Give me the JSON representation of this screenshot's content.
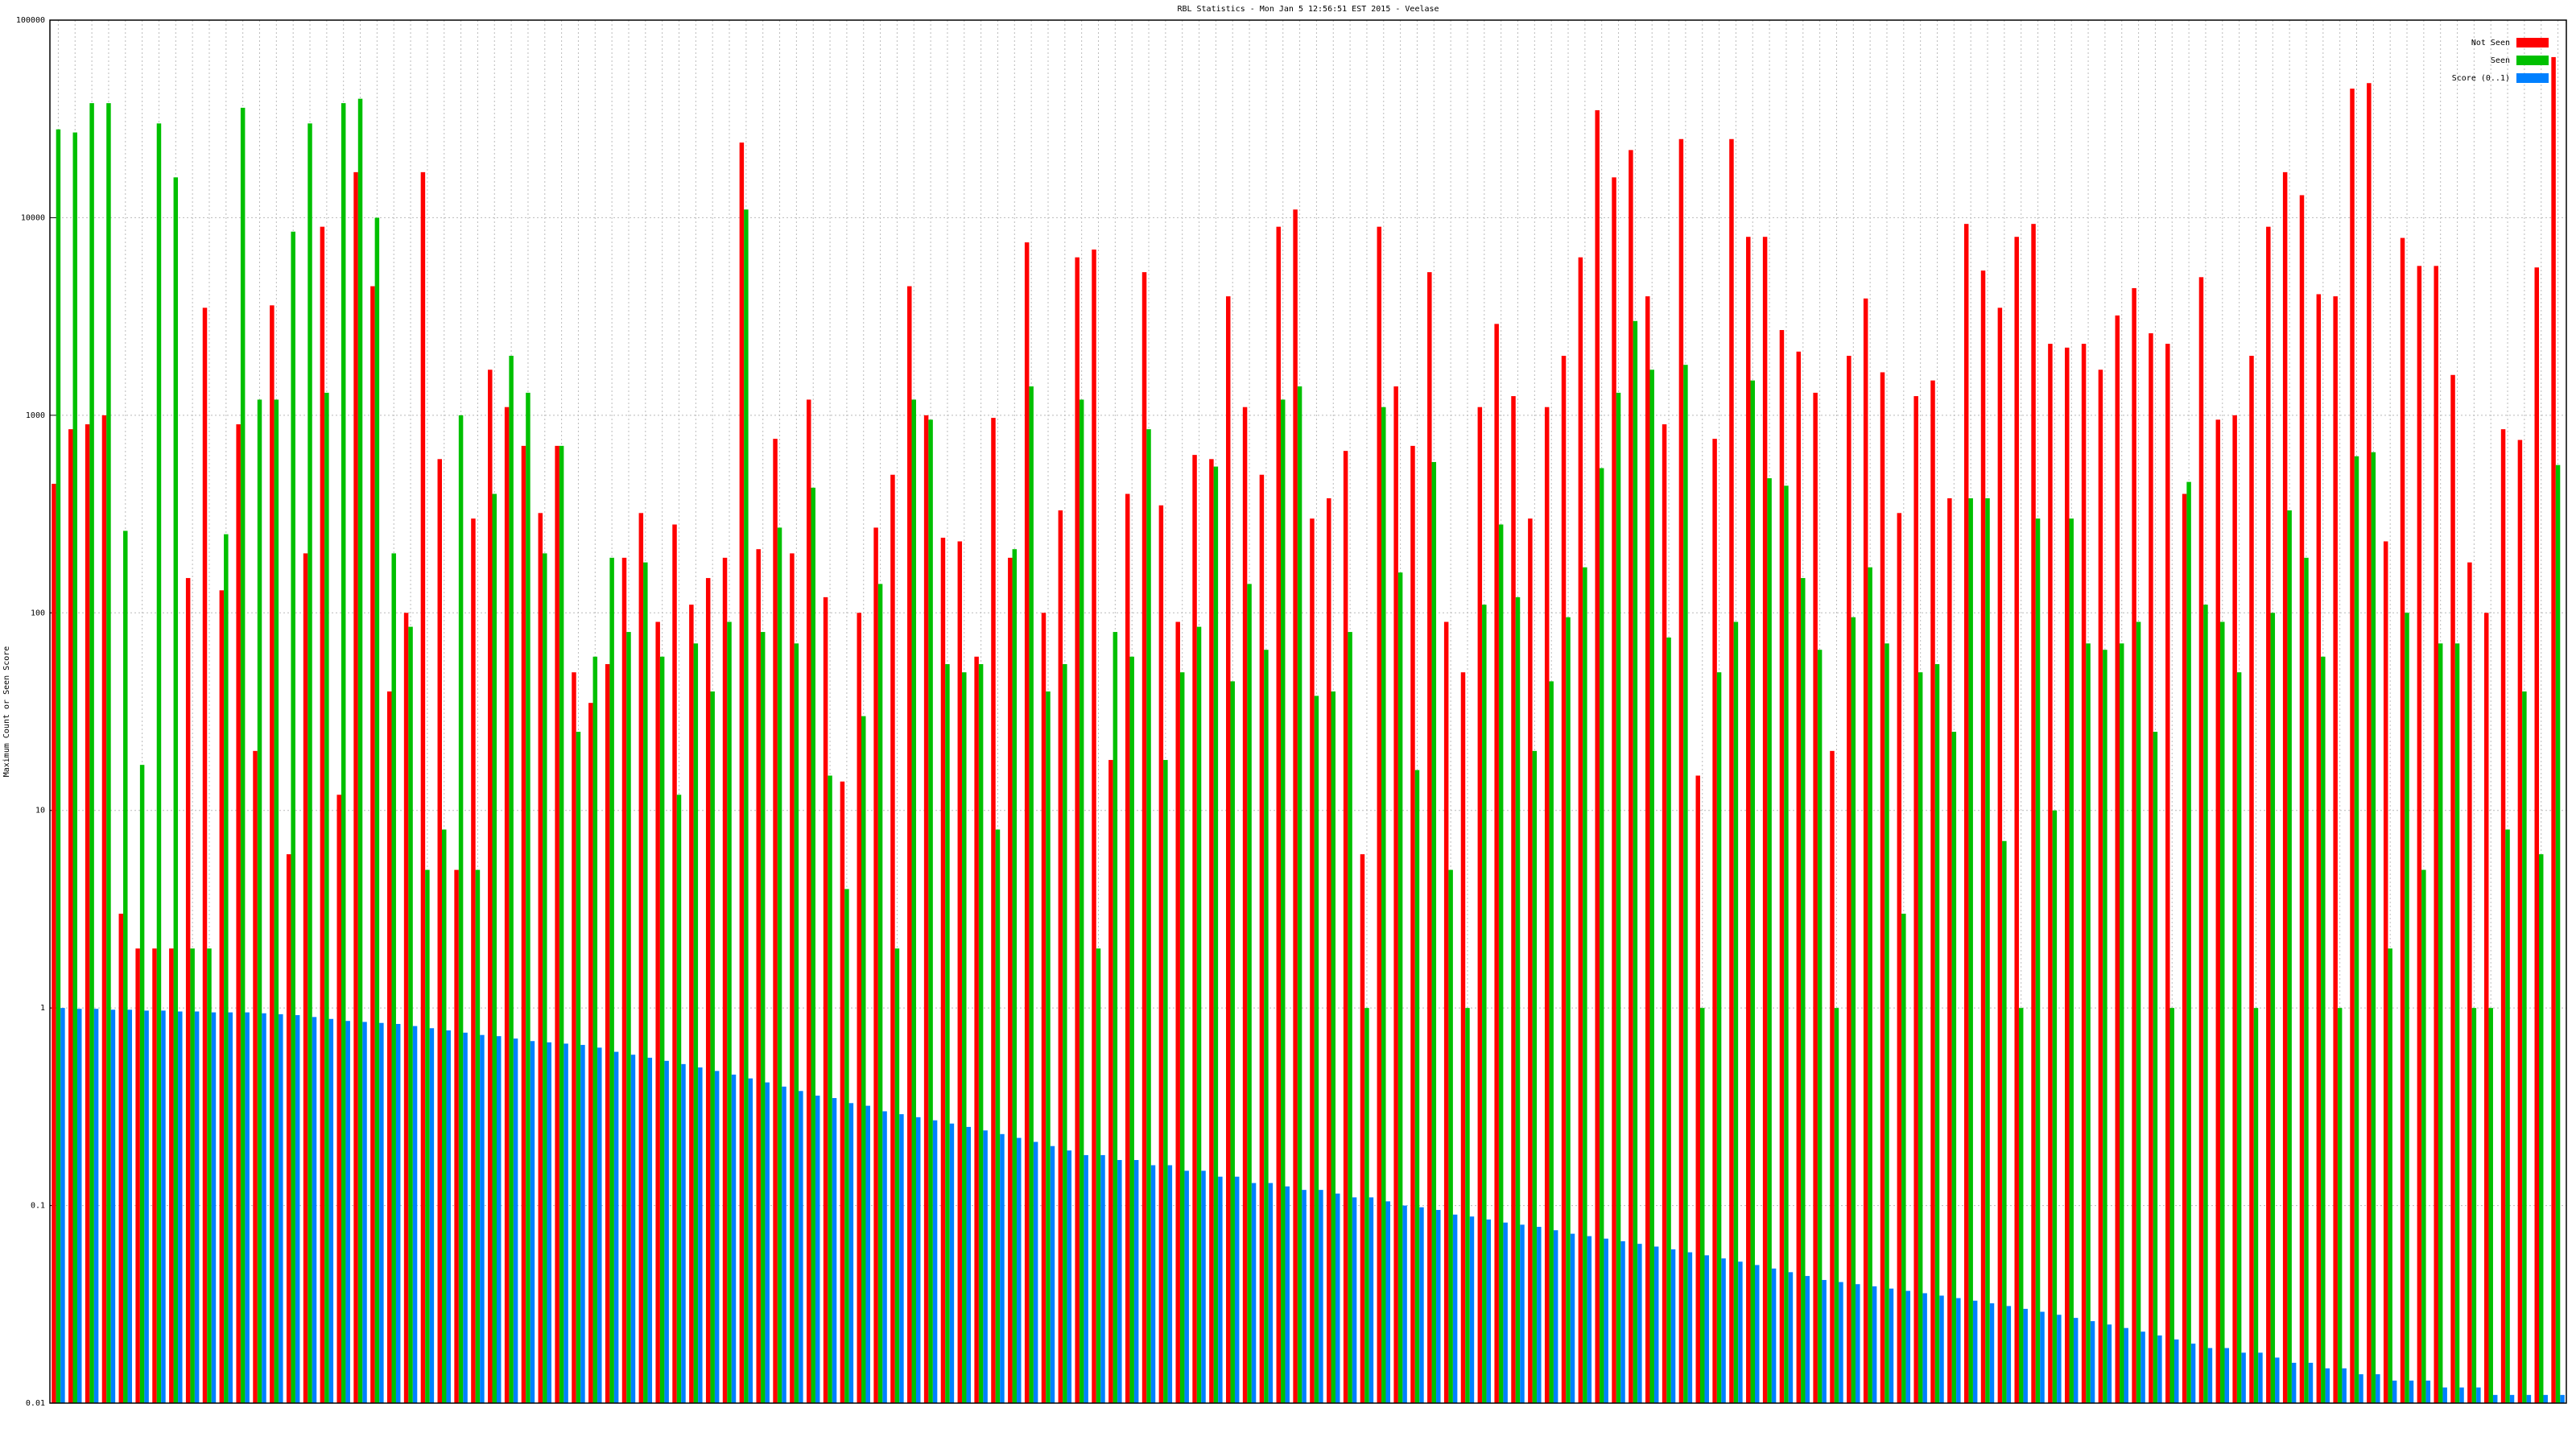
{
  "chart_data": {
    "type": "bar",
    "title": "RBL Statistics - Mon Jan  5 12:56:51 EST 2015 - Veelase",
    "y_label": "Maximum Count or Seen Score",
    "log_scale": true,
    "grid": true,
    "legend": "top-right",
    "ylim": [
      0.01,
      100000
    ],
    "yticks": [
      0.01,
      0.1,
      1,
      10,
      100,
      1000,
      10000,
      100000
    ],
    "categories": [
      null,
      null,
      null,
      null,
      null,
      null,
      null,
      null,
      null,
      null,
      null,
      null,
      null,
      null,
      null,
      null,
      null,
      null,
      null,
      null,
      null,
      null,
      null,
      null,
      null,
      null,
      null,
      null,
      null,
      null,
      null,
      null,
      null,
      null,
      null,
      null,
      null,
      null,
      null,
      null,
      null,
      null,
      null,
      null,
      null,
      null,
      null,
      null,
      null,
      null,
      null,
      null,
      null,
      null,
      null,
      null,
      null,
      null,
      null,
      null,
      null,
      null,
      null,
      null,
      null,
      null,
      null,
      null,
      null,
      null,
      null,
      null,
      null,
      null,
      null,
      null,
      null,
      null,
      null,
      null,
      null,
      null,
      null,
      null,
      null,
      null,
      null,
      null,
      null,
      null,
      null,
      null,
      null,
      null,
      null,
      null,
      null,
      null,
      null,
      null,
      null,
      null,
      null,
      null,
      null,
      null,
      null,
      null,
      null,
      null,
      null,
      null,
      null,
      null,
      null,
      null,
      null,
      null,
      null,
      null,
      null,
      null,
      null,
      null,
      null,
      null,
      null,
      null,
      null,
      null,
      null,
      null,
      null,
      null,
      null,
      null,
      null,
      null,
      null,
      null,
      null,
      null,
      null,
      null,
      null,
      null,
      null,
      null,
      null,
      null
    ],
    "series": [
      {
        "name": "Not Seen",
        "color": "#ff0000",
        "values": [
          450,
          850,
          900,
          1000,
          3,
          2,
          2,
          2,
          150,
          3500,
          130,
          900,
          20,
          3600,
          6,
          200,
          9000,
          12,
          17000,
          4500,
          40,
          100,
          17000,
          600,
          5,
          300,
          1700,
          1100,
          700,
          320,
          700,
          50,
          35,
          55,
          190,
          320,
          90,
          280,
          110,
          150,
          190,
          24000,
          210,
          760,
          200,
          1200,
          120,
          14,
          100,
          270,
          500,
          4500,
          1000,
          240,
          230,
          60,
          970,
          190,
          7500,
          100,
          330,
          6300,
          6900,
          18,
          400,
          5300,
          350,
          90,
          630,
          600,
          4000,
          1100,
          500,
          9000,
          11000,
          300,
          380,
          660,
          6,
          9000,
          1400,
          700,
          5300,
          90,
          50,
          1100,
          2900,
          1250,
          300,
          1100,
          2000,
          6300,
          35000,
          16000,
          22000,
          4000,
          900,
          25000,
          15,
          760,
          25000,
          8000,
          8000,
          2700,
          2100,
          1300,
          20,
          2000,
          3900,
          1650,
          320,
          1250,
          1500,
          380,
          9300,
          5400,
          3500,
          8000,
          9300,
          2300,
          2200,
          2300,
          1700,
          3200,
          4400,
          2600,
          2300,
          400,
          5000,
          950,
          1000,
          2000,
          9000,
          17000,
          13000,
          4100,
          4000,
          45000,
          48000,
          230,
          7900,
          5700,
          5700,
          1600,
          180,
          100,
          850,
          750,
          5600,
          65000
        ]
      },
      {
        "name": "Seen",
        "color": "#00c000",
        "values": [
          28000,
          27000,
          38000,
          38000,
          260,
          17,
          30000,
          16000,
          2,
          2,
          250,
          36000,
          1200,
          1200,
          8500,
          30000,
          1300,
          38000,
          40000,
          10000,
          200,
          85,
          5,
          8,
          1000,
          5,
          400,
          2000,
          1300,
          200,
          700,
          25,
          60,
          190,
          80,
          180,
          60,
          12,
          70,
          40,
          90,
          11000,
          80,
          270,
          70,
          430,
          15,
          4,
          30,
          140,
          2,
          1200,
          950,
          55,
          50,
          55,
          8,
          210,
          1400,
          40,
          55,
          1200,
          2,
          80,
          60,
          850,
          18,
          50,
          85,
          550,
          45,
          140,
          65,
          1200,
          1400,
          38,
          40,
          80,
          1,
          1100,
          160,
          16,
          580,
          5,
          1,
          110,
          280,
          120,
          20,
          45,
          95,
          170,
          540,
          1300,
          3000,
          1700,
          75,
          1800,
          1,
          50,
          90,
          1500,
          480,
          440,
          150,
          65,
          1,
          95,
          170,
          70,
          3,
          50,
          55,
          25,
          380,
          380,
          7,
          1,
          300,
          10,
          300,
          70,
          65,
          70,
          90,
          25,
          1,
          460,
          110,
          90,
          50,
          1,
          100,
          330,
          190,
          60,
          1,
          620,
          650,
          2,
          100,
          5,
          70,
          70,
          1,
          1,
          8,
          40,
          6,
          560
        ]
      },
      {
        "name": "Score (0..1)",
        "color": "#0080ff",
        "values": [
          1.0,
          0.99,
          0.99,
          0.98,
          0.98,
          0.97,
          0.97,
          0.96,
          0.96,
          0.95,
          0.95,
          0.95,
          0.94,
          0.93,
          0.92,
          0.9,
          0.88,
          0.86,
          0.85,
          0.84,
          0.83,
          0.81,
          0.79,
          0.77,
          0.75,
          0.73,
          0.72,
          0.7,
          0.68,
          0.67,
          0.66,
          0.65,
          0.63,
          0.6,
          0.58,
          0.56,
          0.54,
          0.52,
          0.5,
          0.48,
          0.46,
          0.44,
          0.42,
          0.4,
          0.38,
          0.36,
          0.35,
          0.33,
          0.32,
          0.3,
          0.29,
          0.28,
          0.27,
          0.26,
          0.25,
          0.24,
          0.23,
          0.22,
          0.21,
          0.2,
          0.19,
          0.18,
          0.18,
          0.17,
          0.17,
          0.16,
          0.16,
          0.15,
          0.15,
          0.14,
          0.14,
          0.13,
          0.13,
          0.125,
          0.12,
          0.12,
          0.115,
          0.11,
          0.11,
          0.105,
          0.1,
          0.098,
          0.095,
          0.09,
          0.088,
          0.085,
          0.082,
          0.08,
          0.078,
          0.075,
          0.072,
          0.07,
          0.068,
          0.066,
          0.064,
          0.062,
          0.06,
          0.058,
          0.056,
          0.054,
          0.052,
          0.05,
          0.048,
          0.046,
          0.044,
          0.042,
          0.041,
          0.04,
          0.039,
          0.038,
          0.037,
          0.036,
          0.035,
          0.034,
          0.033,
          0.032,
          0.031,
          0.03,
          0.029,
          0.028,
          0.027,
          0.026,
          0.025,
          0.024,
          0.023,
          0.022,
          0.021,
          0.02,
          0.019,
          0.019,
          0.018,
          0.018,
          0.017,
          0.016,
          0.016,
          0.015,
          0.015,
          0.014,
          0.014,
          0.013,
          0.013,
          0.013,
          0.012,
          0.012,
          0.012,
          0.011,
          0.011,
          0.011,
          0.011,
          0.011
        ]
      }
    ]
  }
}
